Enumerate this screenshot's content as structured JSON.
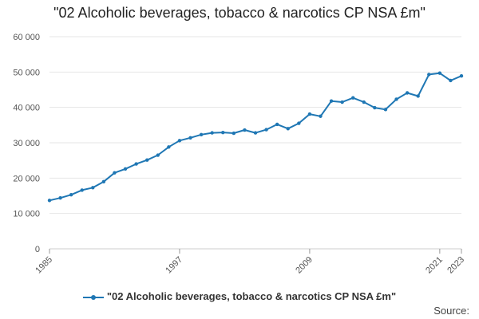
{
  "chart_data": {
    "type": "line",
    "title": "\"02 Alcoholic beverages, tobacco & narcotics CP NSA £m\"",
    "xlabel": "",
    "ylabel": "",
    "ylim": [
      0,
      60000
    ],
    "xlim": [
      1985,
      2023
    ],
    "yticks": [
      0,
      10000,
      20000,
      30000,
      40000,
      50000,
      60000
    ],
    "ytick_labels": [
      "0",
      "10 000",
      "20 000",
      "30 000",
      "40 000",
      "50 000",
      "60 000"
    ],
    "xticks": [
      1985,
      1997,
      2009,
      2021,
      2023
    ],
    "xtick_labels": [
      "1985",
      "1997",
      "2009",
      "2021",
      "2023"
    ],
    "grid": "horizontal",
    "legend": "bottom",
    "series": [
      {
        "name": "\"02 Alcoholic beverages, tobacco & narcotics CP NSA £m\"",
        "color": "#1f77b4",
        "x": [
          1985,
          1986,
          1987,
          1988,
          1989,
          1990,
          1991,
          1992,
          1993,
          1994,
          1995,
          1996,
          1997,
          1998,
          1999,
          2000,
          2001,
          2002,
          2003,
          2004,
          2005,
          2006,
          2007,
          2008,
          2009,
          2010,
          2011,
          2012,
          2013,
          2014,
          2015,
          2016,
          2017,
          2018,
          2019,
          2020,
          2021,
          2022,
          2023
        ],
        "values": [
          13700,
          14400,
          15300,
          16600,
          17300,
          19000,
          21500,
          22600,
          24000,
          25100,
          26500,
          28800,
          30600,
          31400,
          32300,
          32800,
          32900,
          32700,
          33600,
          32800,
          33700,
          35200,
          34000,
          35500,
          38100,
          37500,
          41800,
          41500,
          42700,
          41500,
          39900,
          39400,
          42300,
          44100,
          43200,
          49300,
          49700,
          47600,
          48900
        ]
      }
    ]
  },
  "legend": {
    "label": "\"02 Alcoholic beverages, tobacco & narcotics CP NSA £m\""
  },
  "source": {
    "label": "Source:"
  }
}
